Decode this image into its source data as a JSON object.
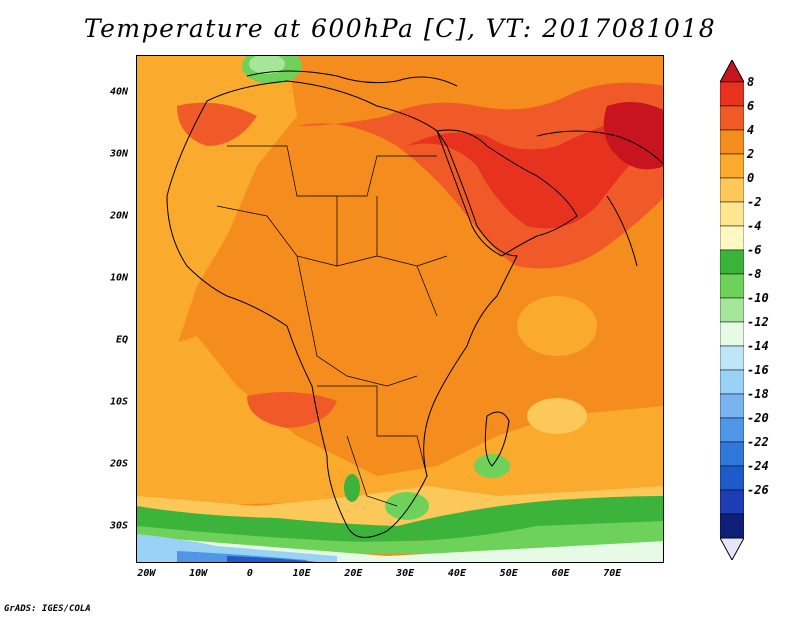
{
  "title": "Temperature at 600hPa [C], VT: 2017081018",
  "credit": "GrADS: IGES/COLA",
  "lat_labels": [
    {
      "label": "40N",
      "lat": 40
    },
    {
      "label": "30N",
      "lat": 30
    },
    {
      "label": "20N",
      "lat": 20
    },
    {
      "label": "10N",
      "lat": 10
    },
    {
      "label": "EQ",
      "lat": 0
    },
    {
      "label": "10S",
      "lat": -10
    },
    {
      "label": "20S",
      "lat": -20
    },
    {
      "label": "30S",
      "lat": -30
    }
  ],
  "lon_labels": [
    {
      "label": "20W",
      "lon": -20
    },
    {
      "label": "10W",
      "lon": -10
    },
    {
      "label": "0",
      "lon": 0
    },
    {
      "label": "10E",
      "lon": 10
    },
    {
      "label": "20E",
      "lon": 20
    },
    {
      "label": "30E",
      "lon": 30
    },
    {
      "label": "40E",
      "lon": 40
    },
    {
      "label": "50E",
      "lon": 50
    },
    {
      "label": "60E",
      "lon": 60
    },
    {
      "label": "70E",
      "lon": 70
    }
  ],
  "extent": {
    "lon": [
      -22,
      80
    ],
    "lat": [
      -36,
      46
    ]
  },
  "colorbar": {
    "levels": [
      "8",
      "6",
      "4",
      "2",
      "0",
      "-2",
      "-4",
      "-6",
      "-8",
      "-10",
      "-12",
      "-14",
      "-16",
      "-18",
      "-20",
      "-22",
      "-24",
      "-26"
    ],
    "colors": [
      "#c8141e",
      "#e6321e",
      "#f05a28",
      "#f58c1e",
      "#faaa2d",
      "#fdc85a",
      "#fee690",
      "#fff8c0",
      "#3cb43c",
      "#6ed25a",
      "#a6e69a",
      "#e6fae6",
      "#bee6f8",
      "#9ad2f5",
      "#78b4f0",
      "#5096e6",
      "#3278dc",
      "#1e5ac8",
      "#1e3cb4",
      "#0f1e78",
      "#e6e6fa"
    ]
  },
  "legend_colors": {
    "hot_core": "#e6321e",
    "very_warm": "#f05a28",
    "warm": "#f58c1e",
    "mild": "#faaa2d",
    "cool": "#fdc85a",
    "pale": "#fee690",
    "green": "#3cb43c",
    "light_green": "#6ed25a",
    "pale_green": "#a6e69a",
    "ice": "#e6fae6",
    "light_blue": "#9ad2f5",
    "blue": "#5096e6",
    "dark_blue": "#1e5ac8"
  }
}
